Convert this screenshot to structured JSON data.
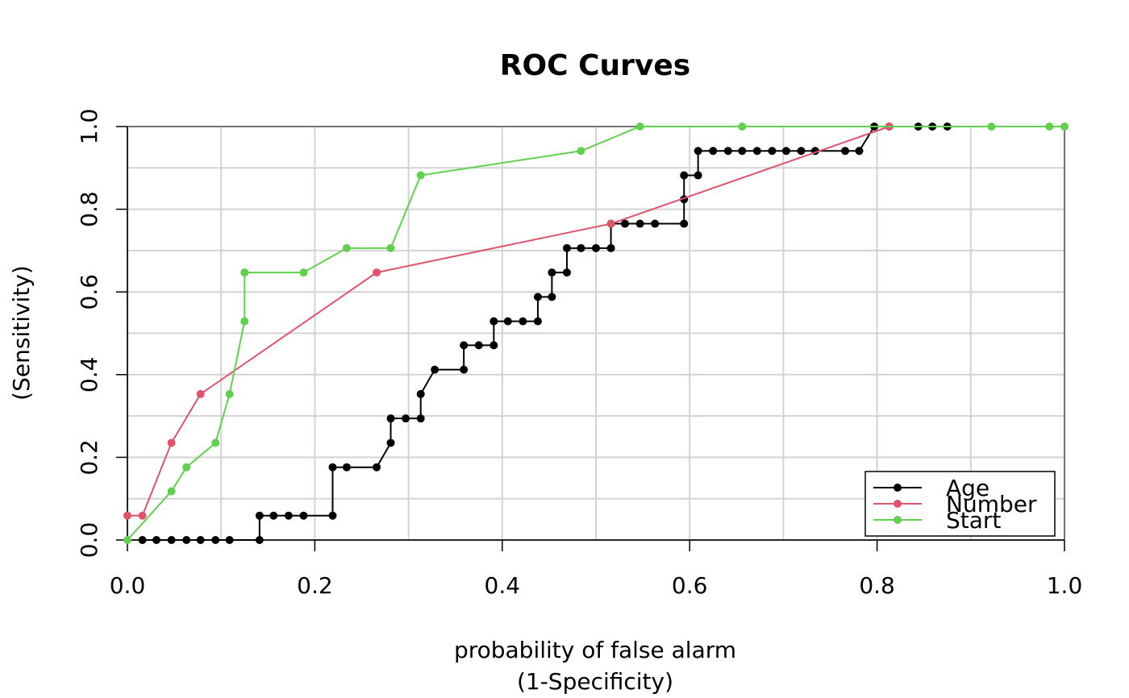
{
  "chart_data": {
    "type": "line",
    "title": "ROC Curves",
    "xlabel": [
      "probability of false alarm",
      "(1-Specificity)"
    ],
    "ylabel": "(Sensitivity)",
    "xlim": [
      0,
      1
    ],
    "ylim": [
      0,
      1
    ],
    "xticks": [
      {
        "value": 0,
        "label": "0.0"
      },
      0.2,
      0.4,
      0.6,
      0.8,
      {
        "value": 1,
        "label": "1.0"
      }
    ],
    "yticks": [
      {
        "value": 0,
        "label": "0.0"
      },
      0.2,
      0.4,
      0.6,
      0.8,
      {
        "value": 1,
        "label": "1.0"
      }
    ],
    "xgrid": [
      0,
      0.1,
      0.2,
      0.3,
      0.4,
      0.5,
      0.6,
      0.7,
      0.8,
      0.9,
      1
    ],
    "ygrid": [
      0,
      0.1,
      0.2,
      0.3,
      0.4,
      0.5,
      0.6,
      0.7,
      0.8,
      0.9,
      1
    ],
    "grid_color": "#d3d3d3",
    "legend": "bottom-right",
    "series": [
      {
        "name": "Age",
        "color": "#000000",
        "x": [
          0.016,
          0.031,
          0.047,
          0.063,
          0.078,
          0.094,
          0.109,
          0.141,
          0.141,
          0.156,
          0.172,
          0.188,
          0.219,
          0.219,
          0.234,
          0.266,
          0.281,
          0.281,
          0.297,
          0.313,
          0.313,
          0.328,
          0.359,
          0.359,
          0.375,
          0.391,
          0.391,
          0.406,
          0.422,
          0.438,
          0.438,
          0.453,
          0.453,
          0.469,
          0.469,
          0.484,
          0.5,
          0.516,
          0.516,
          0.531,
          0.547,
          0.563,
          0.594,
          0.594,
          0.594,
          0.609,
          0.609,
          0.625,
          0.641,
          0.656,
          0.672,
          0.688,
          0.703,
          0.719,
          0.734,
          0.766,
          0.781,
          0.797,
          0.813,
          0.844,
          0.859,
          0.875
        ],
        "values": [
          0,
          0,
          0,
          0,
          0,
          0,
          0,
          0,
          0.059,
          0.059,
          0.059,
          0.059,
          0.059,
          0.176,
          0.176,
          0.176,
          0.235,
          0.294,
          0.294,
          0.294,
          0.353,
          0.412,
          0.412,
          0.471,
          0.471,
          0.471,
          0.529,
          0.529,
          0.529,
          0.529,
          0.588,
          0.588,
          0.647,
          0.647,
          0.706,
          0.706,
          0.706,
          0.706,
          0.765,
          0.765,
          0.765,
          0.765,
          0.765,
          0.824,
          0.882,
          0.882,
          0.941,
          0.941,
          0.941,
          0.941,
          0.941,
          0.941,
          0.941,
          0.941,
          0.941,
          0.941,
          0.941,
          1,
          1,
          1,
          1,
          1
        ]
      },
      {
        "name": "Number",
        "color": "#df536b",
        "x": [
          0,
          0.016,
          0.047,
          0.078,
          0.266,
          0.516,
          0.813
        ],
        "values": [
          0.059,
          0.059,
          0.235,
          0.353,
          0.647,
          0.765,
          1
        ]
      },
      {
        "name": "Start",
        "color": "#61d04f",
        "x": [
          0,
          0.047,
          0.063,
          0.094,
          0.109,
          0.125,
          0.125,
          0.188,
          0.234,
          0.281,
          0.313,
          0.484,
          0.547,
          0.656,
          0.922,
          0.984,
          1
        ],
        "values": [
          0,
          0.118,
          0.176,
          0.235,
          0.353,
          0.529,
          0.647,
          0.647,
          0.706,
          0.706,
          0.882,
          0.941,
          1,
          1,
          1,
          1,
          1
        ]
      }
    ]
  }
}
